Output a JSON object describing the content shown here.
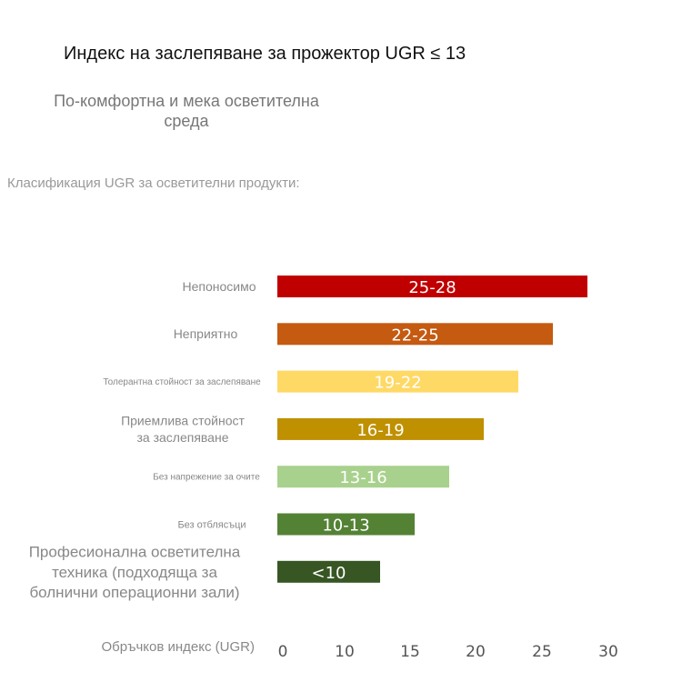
{
  "title": "Индекс на заслепяване за прожектор UGR ≤ 13",
  "subtitle": "По-комфортна и мека осветителна среда",
  "section_label": "Класификация UGR за осветителни продукти:",
  "chart_data": {
    "type": "bar",
    "orientation": "horizontal",
    "xlabel": "Обръчков индекс (UGR)",
    "xticks": [
      0,
      10,
      15,
      20,
      25,
      30
    ],
    "grid": false,
    "categories": [
      [
        "Непоносимо"
      ],
      [
        "Неприятно"
      ],
      [
        "Толерантна стойност за заслепяване"
      ],
      [
        "Приемлива стойност",
        "за заслепяване"
      ],
      [
        "Без напрежение за очите"
      ],
      [
        "Без отблясъци"
      ],
      [
        "Професионална осветителна",
        "техника (подходяща за",
        "болнични операционни зали)"
      ]
    ],
    "bar_labels": [
      "25-28",
      "22-25",
      "19-22",
      "16-19",
      "13-16",
      "10-13",
      "<10"
    ],
    "values": [
      28,
      25,
      22,
      19,
      16,
      13,
      10
    ],
    "colors": [
      "#c00000",
      "#c55a11",
      "#ffd966",
      "#bf9000",
      "#a9d18e",
      "#548235",
      "#375623"
    ]
  }
}
